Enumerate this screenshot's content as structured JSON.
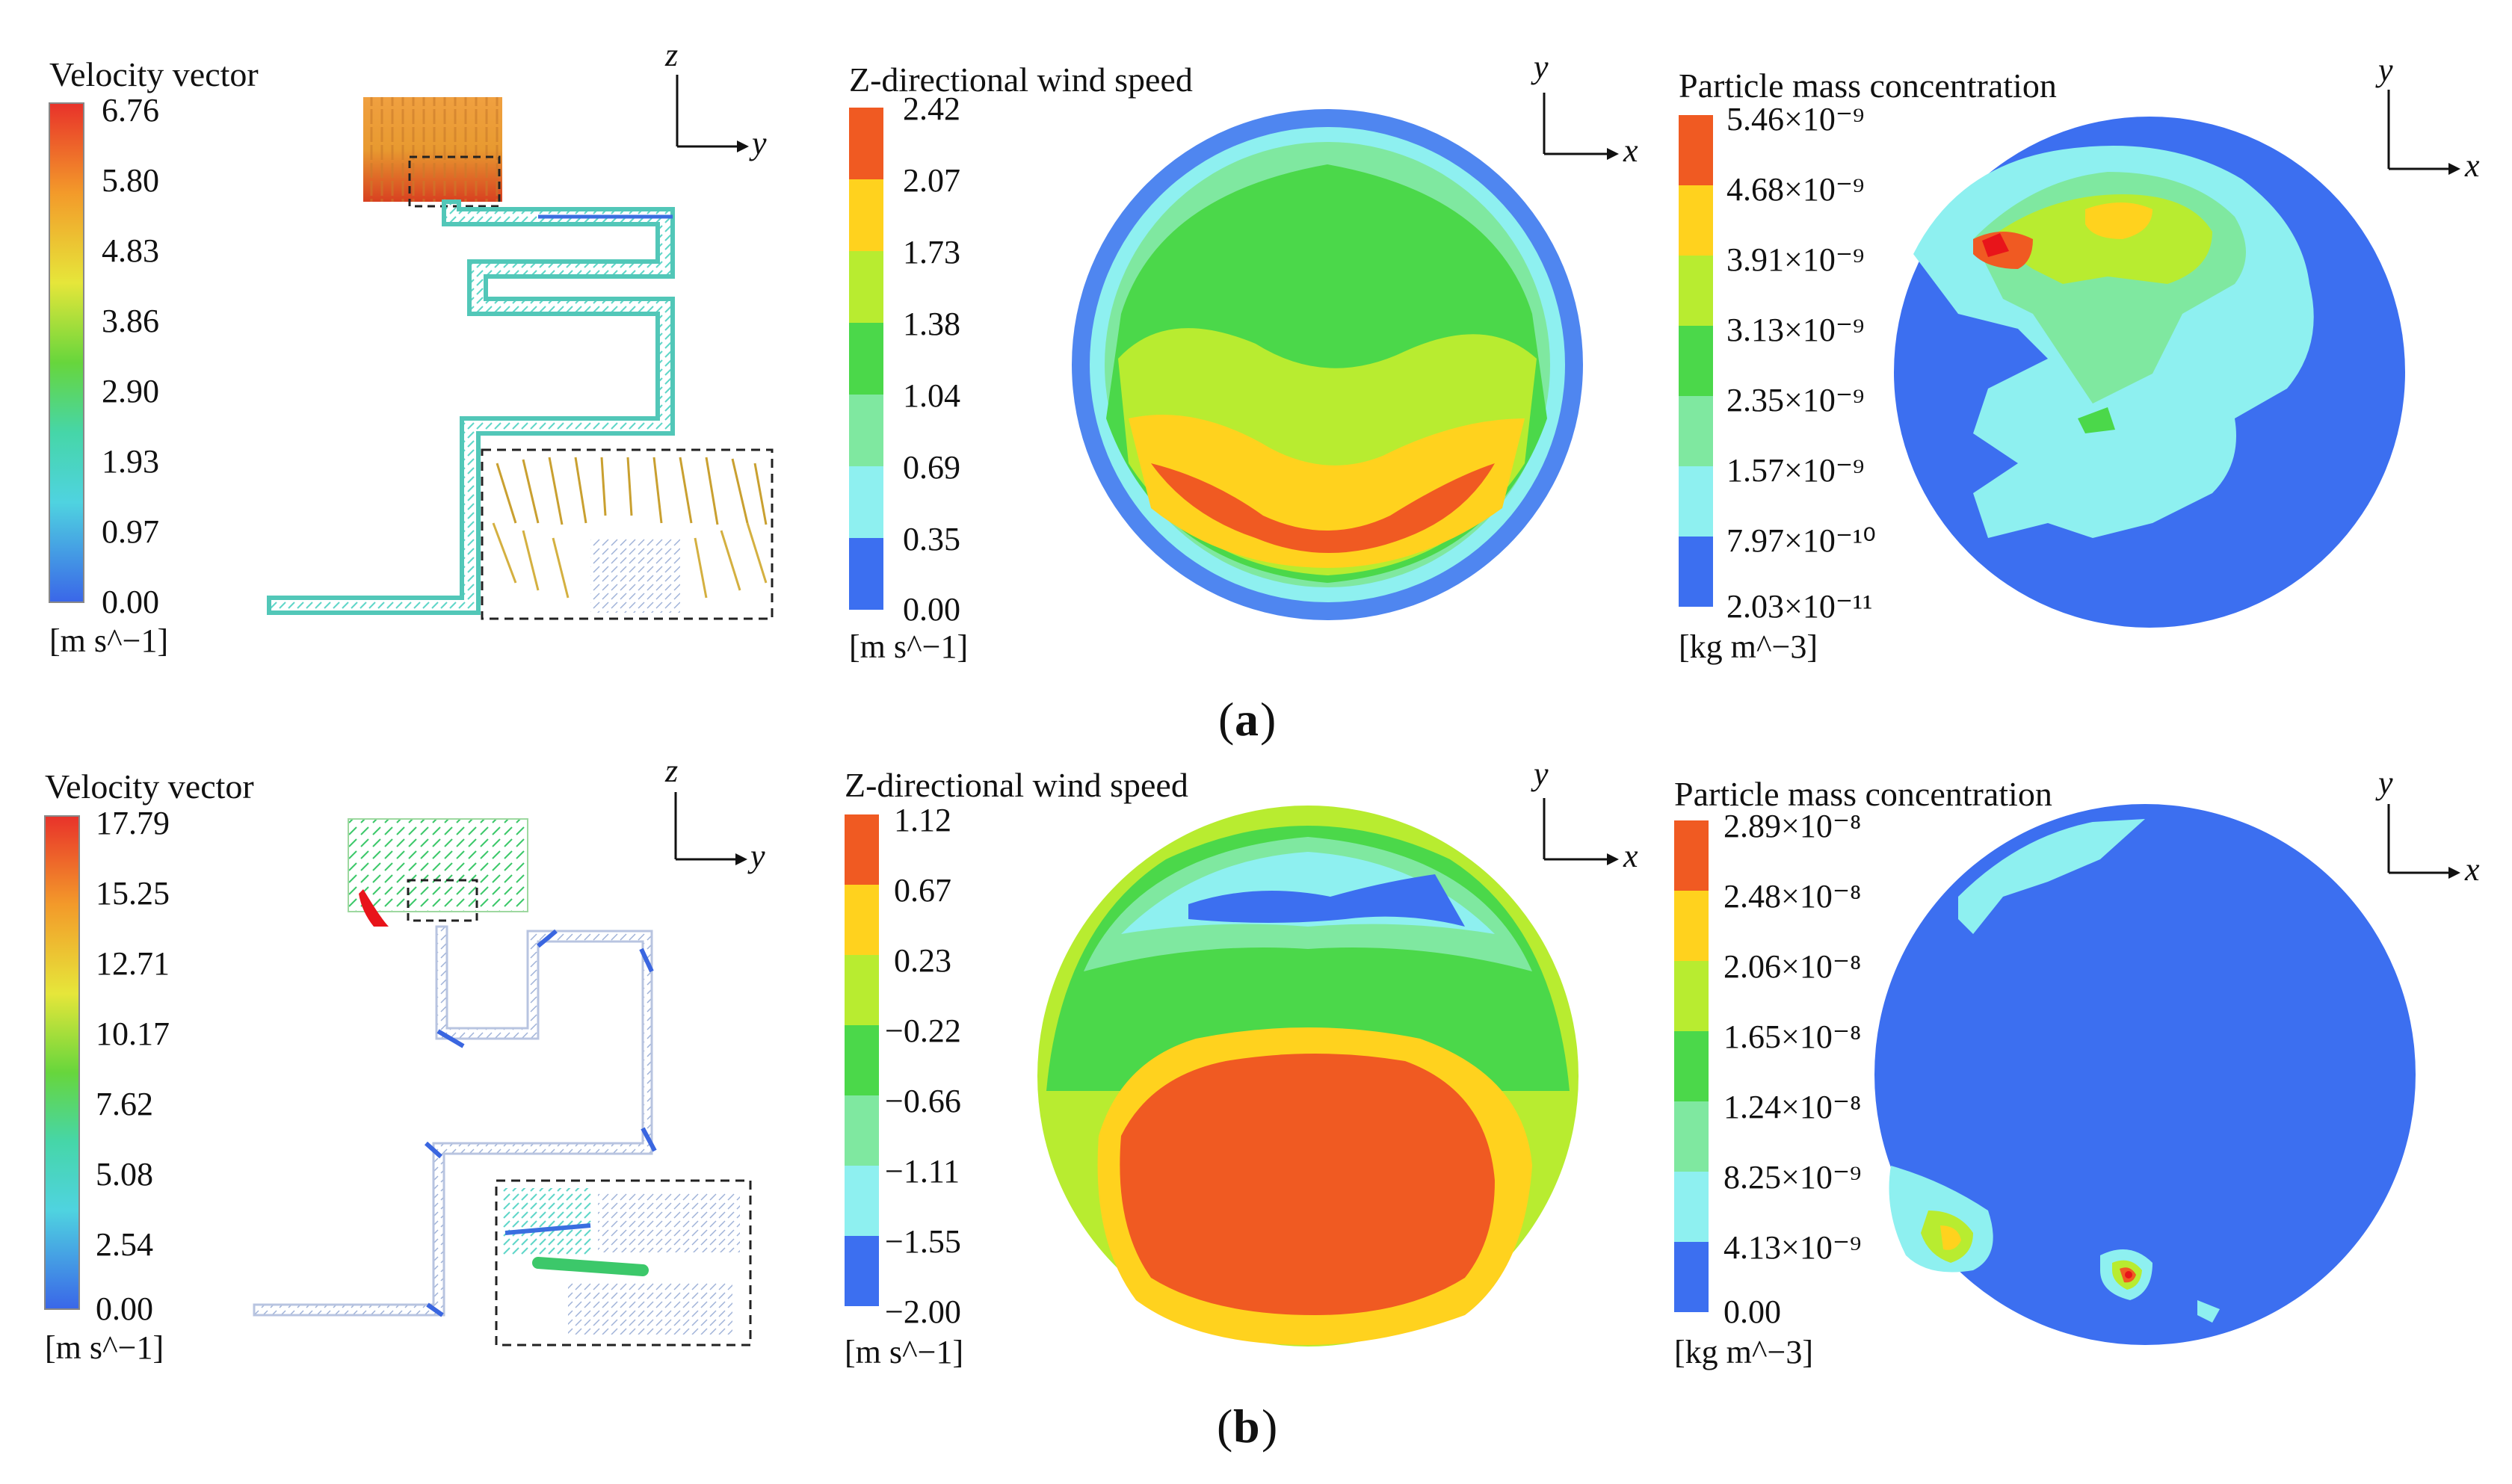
{
  "panels": {
    "a": {
      "caption_open": "(",
      "caption_letter": "a",
      "caption_close": ")",
      "velocity": {
        "title": "Velocity vector",
        "ticks": [
          "6.76",
          "5.80",
          "4.83",
          "3.86",
          "2.90",
          "1.93",
          "0.97",
          "0.00"
        ],
        "unit": "[m s^−1]",
        "axes": {
          "vertical": "z",
          "horizontal": "y"
        }
      },
      "zwind": {
        "title": "Z-directional wind speed",
        "ticks": [
          "2.42",
          "2.07",
          "1.73",
          "1.38",
          "1.04",
          "0.69",
          "0.35",
          "0.00"
        ],
        "unit": "[m s^−1]",
        "axes": {
          "vertical": "y",
          "horizontal": "x"
        }
      },
      "particle": {
        "title": "Particle mass concentration",
        "ticks": [
          "5.46×10⁻⁹",
          "4.68×10⁻⁹",
          "3.91×10⁻⁹",
          "3.13×10⁻⁹",
          "2.35×10⁻⁹",
          "1.57×10⁻⁹",
          "7.97×10⁻¹⁰",
          "2.03×10⁻¹¹"
        ],
        "unit": "[kg m^−3]",
        "axes": {
          "vertical": "y",
          "horizontal": "x"
        }
      }
    },
    "b": {
      "caption_open": "(",
      "caption_letter": "b",
      "caption_close": ")",
      "velocity": {
        "title": "Velocity vector",
        "ticks": [
          "17.79",
          "15.25",
          "12.71",
          "10.17",
          "7.62",
          "5.08",
          "2.54",
          "0.00"
        ],
        "unit": "[m s^−1]",
        "axes": {
          "vertical": "z",
          "horizontal": "y"
        }
      },
      "zwind": {
        "title": "Z-directional wind speed",
        "ticks": [
          "1.12",
          "0.67",
          "0.23",
          "−0.22",
          "−0.66",
          "−1.11",
          "−1.55",
          "−2.00"
        ],
        "unit": "[m s^−1]",
        "axes": {
          "vertical": "y",
          "horizontal": "x"
        }
      },
      "particle": {
        "title": "Particle mass concentration",
        "ticks": [
          "2.89×10⁻⁸",
          "2.48×10⁻⁸",
          "2.06×10⁻⁸",
          "1.65×10⁻⁸",
          "1.24×10⁻⁸",
          "8.25×10⁻⁹",
          "4.13×10⁻⁹",
          "0.00"
        ],
        "unit": "[kg m^−3]",
        "axes": {
          "vertical": "y",
          "horizontal": "x"
        }
      }
    }
  },
  "colors": {
    "gradient": [
      "#e8322a",
      "#f39a2a",
      "#e6e63a",
      "#67d63c",
      "#46d6a8",
      "#4fd3e0",
      "#3a7ae8"
    ],
    "bands": [
      "#f05a22",
      "#ffd21e",
      "#b8ec30",
      "#4bd84a",
      "#7fe8a0",
      "#8ef0f0",
      "#3c6ff0"
    ],
    "blue": "#3c6ff0",
    "dark_red": "#e8141a"
  }
}
